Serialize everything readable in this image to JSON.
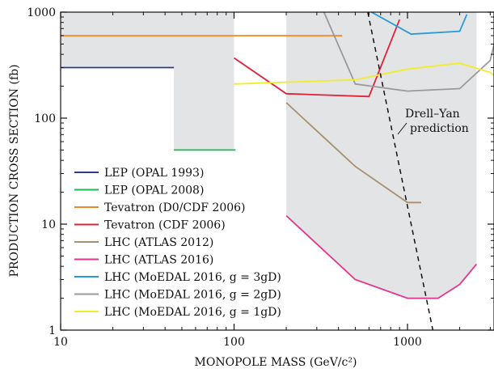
{
  "chart_data": {
    "type": "line",
    "xlabel": "MONOPOLE MASS (GeV/c²)",
    "ylabel": "PRODUCTION CROSS SECTION (fb)",
    "xscale": "log",
    "yscale": "log",
    "xlim": [
      10,
      3500
    ],
    "ylim": [
      1,
      1000
    ],
    "xticks": [
      {
        "value": 10,
        "label": "10"
      },
      {
        "value": 100,
        "label": "100"
      },
      {
        "value": 1000,
        "label": "1000"
      }
    ],
    "yticks": [
      {
        "value": 1,
        "label": "1"
      },
      {
        "value": 10,
        "label": "10"
      },
      {
        "value": 100,
        "label": "100"
      },
      {
        "value": 1000,
        "label": "1000"
      }
    ],
    "grid": false,
    "excluded_region_color": "#e3e4e5",
    "excluded_region": [
      [
        10,
        1000
      ],
      [
        10,
        300
      ],
      [
        45,
        300
      ],
      [
        45,
        50
      ],
      [
        100,
        50
      ],
      [
        100,
        1000
      ],
      [
        200,
        1000
      ],
      [
        200,
        12
      ],
      [
        500,
        3
      ],
      [
        1000,
        2
      ],
      [
        1500,
        2
      ],
      [
        2000,
        2.7
      ],
      [
        2500,
        4.2
      ],
      [
        2500,
        1000
      ]
    ],
    "legend_position": "bottom-left",
    "series": [
      {
        "name": "LEP (OPAL 1993)",
        "color": "#2e3a8c",
        "points": [
          [
            10,
            300
          ],
          [
            45,
            300
          ]
        ]
      },
      {
        "name": "LEP (OPAL 2008)",
        "color": "#1db954",
        "points": [
          [
            45,
            50
          ],
          [
            102,
            50
          ]
        ]
      },
      {
        "name": "Tevatron (D0/CDF 2006)",
        "color": "#f0882a",
        "points": [
          [
            10,
            600
          ],
          [
            420,
            600
          ]
        ]
      },
      {
        "name": "Tevatron (CDF 2006)",
        "color": "#e0213a",
        "points": [
          [
            100,
            370
          ],
          [
            200,
            170
          ],
          [
            600,
            160
          ],
          [
            900,
            850
          ]
        ]
      },
      {
        "name": "LHC (ATLAS 2012)",
        "color": "#a89070",
        "points": [
          [
            200,
            140
          ],
          [
            500,
            35
          ],
          [
            1000,
            16
          ],
          [
            1200,
            16
          ]
        ]
      },
      {
        "name": "LHC (ATLAS 2016)",
        "color": "#e6338c",
        "points": [
          [
            200,
            12
          ],
          [
            500,
            3
          ],
          [
            1000,
            2
          ],
          [
            1500,
            2
          ],
          [
            2000,
            2.7
          ],
          [
            2500,
            4.2
          ]
        ]
      },
      {
        "name": "LHC (MoEDAL 2016, g = 3gD)",
        "color": "#2a9ad8",
        "points": [
          [
            620,
            1000
          ],
          [
            1050,
            620
          ],
          [
            2000,
            660
          ],
          [
            2200,
            950
          ]
        ]
      },
      {
        "name": "LHC (MoEDAL 2016, g = 2gD)",
        "color": "#9a9a9a",
        "points": [
          [
            330,
            1000
          ],
          [
            500,
            210
          ],
          [
            1000,
            180
          ],
          [
            2000,
            190
          ],
          [
            3000,
            350
          ],
          [
            3500,
            1000
          ]
        ]
      },
      {
        "name": "LHC (MoEDAL 2016, g = 1gD)",
        "color": "#f2ec2a",
        "points": [
          [
            100,
            210
          ],
          [
            500,
            230
          ],
          [
            1000,
            290
          ],
          [
            2000,
            330
          ],
          [
            3000,
            270
          ],
          [
            3500,
            220
          ]
        ]
      }
    ],
    "reference_line": {
      "name": "Drell–Yan prediction",
      "label_line1": "Drell–Yan",
      "label_line2": "prediction",
      "style": "dashed",
      "color": "#111111",
      "points": [
        [
          590,
          1000
        ],
        [
          1400,
          1
        ]
      ]
    }
  }
}
